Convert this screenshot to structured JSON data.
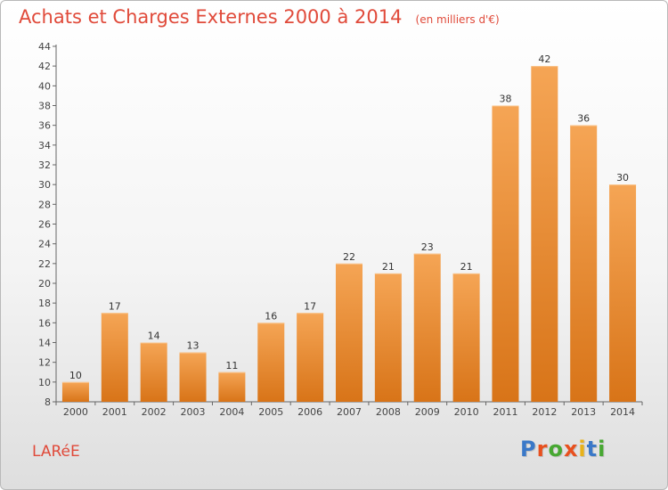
{
  "header": {
    "title": "Achats et Charges Externes 2000 à 2014",
    "subtitle": "(en milliers d'€)"
  },
  "footer": {
    "commune": "LARéE",
    "logo": "Proxiti"
  },
  "colors": {
    "title": "#e04a3a",
    "bar_top": "#f5a555",
    "bar_bottom": "#d87418",
    "logo_letters": [
      "#3a78c8",
      "#e8501e",
      "#47a832",
      "#e8501e",
      "#e8b21a",
      "#3a78c8",
      "#47a832"
    ]
  },
  "chart_data": {
    "type": "bar",
    "title": "Achats et Charges Externes 2000 à 2014",
    "xlabel": "",
    "ylabel": "",
    "ylim": [
      8,
      44
    ],
    "ytick_step": 2,
    "grid": false,
    "categories": [
      "2000",
      "2001",
      "2002",
      "2003",
      "2004",
      "2005",
      "2006",
      "2007",
      "2008",
      "2009",
      "2010",
      "2011",
      "2012",
      "2013",
      "2014"
    ],
    "values": [
      10,
      17,
      14,
      13,
      11,
      16,
      17,
      22,
      21,
      23,
      21,
      38,
      42,
      36,
      30
    ]
  }
}
